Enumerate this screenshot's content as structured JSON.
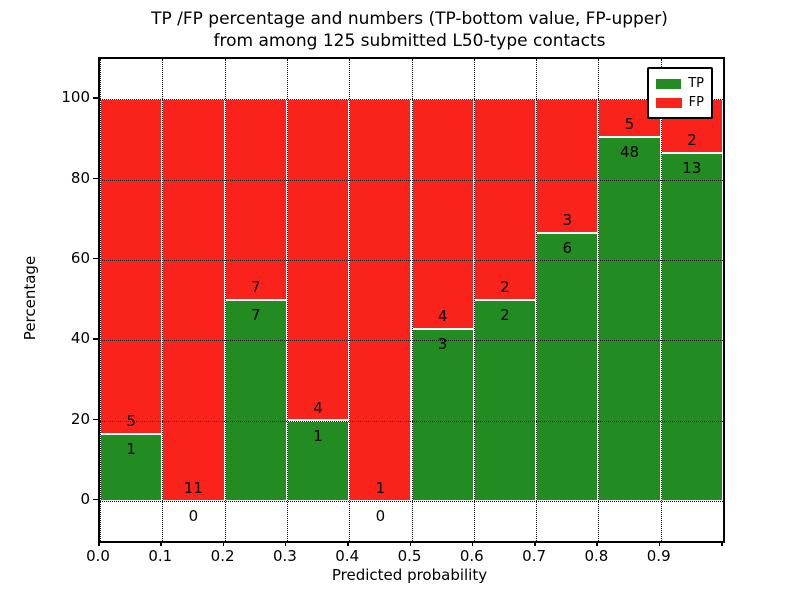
{
  "chart_data": {
    "type": "bar",
    "stacked": true,
    "normalized_to": 100,
    "title_line1": "TP /FP percentage and numbers (TP-bottom value, FP-upper)",
    "title_line2": "from among 125 submitted L50-type contacts",
    "title": "TP /FP percentage and numbers (TP-bottom value, FP-upper) from among 125 submitted L50-type contacts",
    "xlabel": "Predicted probability",
    "ylabel": "Percentage",
    "total_contacts": 125,
    "xlim": [
      0.0,
      1.0
    ],
    "ylim": [
      -10,
      110
    ],
    "grid": true,
    "x_tick_labels": [
      "0.0",
      "0.1",
      "0.2",
      "0.3",
      "0.4",
      "0.5",
      "0.6",
      "0.7",
      "0.8",
      "0.9"
    ],
    "y_tick_values": [
      0,
      20,
      40,
      60,
      80,
      100
    ],
    "y_tick_labels": [
      "0",
      "20",
      "40",
      "60",
      "80",
      "100"
    ],
    "bin_edges": [
      0.0,
      0.1,
      0.2,
      0.3,
      0.4,
      0.5,
      0.6,
      0.7,
      0.8,
      0.9,
      1.0
    ],
    "series": [
      {
        "name": "TP",
        "color": "#228B22",
        "counts": [
          1,
          0,
          7,
          1,
          0,
          3,
          2,
          6,
          48,
          13
        ]
      },
      {
        "name": "FP",
        "color": "#fa231b",
        "counts": [
          5,
          11,
          7,
          4,
          1,
          4,
          2,
          3,
          5,
          2
        ]
      }
    ],
    "tp_percentages": [
      16.67,
      0.0,
      50.0,
      20.0,
      0.0,
      42.86,
      50.0,
      66.67,
      90.57,
      86.67
    ],
    "legend": {
      "position": "upper right",
      "entries": [
        "TP",
        "FP"
      ]
    },
    "colors": {
      "tp": "#228B22",
      "fp": "#fa231b",
      "grid": "#111111",
      "frame": "#000000",
      "background": "#ffffff"
    }
  }
}
